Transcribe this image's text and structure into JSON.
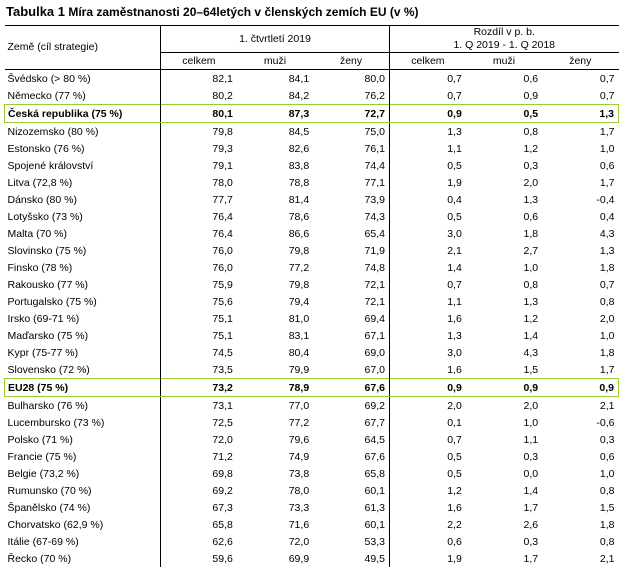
{
  "caption": {
    "lead": "Tabulka 1",
    "rest": " Míra zaměstnanosti 20–64letých v členských zemích EU (v %)"
  },
  "header": {
    "country": "Země (cíl strategie)",
    "group1": "1. čtvrtletí 2019",
    "group2_line1": "Rozdíl v p. b.",
    "group2_line2": "1. Q 2019 - 1. Q 2018",
    "sub": [
      "celkem",
      "muži",
      "ženy",
      "celkem",
      "muži",
      "ženy"
    ]
  },
  "highlight_color": "#9acd32",
  "rows": [
    {
      "name": "Švédsko (> 80 %)",
      "v": [
        "82,1",
        "84,1",
        "80,0",
        "0,7",
        "0,6",
        "0,7"
      ],
      "hl": false
    },
    {
      "name": "Německo (77 %)",
      "v": [
        "80,2",
        "84,2",
        "76,2",
        "0,7",
        "0,9",
        "0,7"
      ],
      "hl": false
    },
    {
      "name": "Česká republika (75 %)",
      "v": [
        "80,1",
        "87,3",
        "72,7",
        "0,9",
        "0,5",
        "1,3"
      ],
      "hl": true
    },
    {
      "name": "Nizozemsko (80 %)",
      "v": [
        "79,8",
        "84,5",
        "75,0",
        "1,3",
        "0,8",
        "1,7"
      ],
      "hl": false
    },
    {
      "name": "Estonsko (76 %)",
      "v": [
        "79,3",
        "82,6",
        "76,1",
        "1,1",
        "1,2",
        "1,0"
      ],
      "hl": false
    },
    {
      "name": "Spojené království",
      "v": [
        "79,1",
        "83,8",
        "74,4",
        "0,5",
        "0,3",
        "0,6"
      ],
      "hl": false
    },
    {
      "name": "Litva (72,8 %)",
      "v": [
        "78,0",
        "78,8",
        "77,1",
        "1,9",
        "2,0",
        "1,7"
      ],
      "hl": false
    },
    {
      "name": "Dánsko (80 %)",
      "v": [
        "77,7",
        "81,4",
        "73,9",
        "0,4",
        "1,3",
        "-0,4"
      ],
      "hl": false
    },
    {
      "name": "Lotyšsko (73 %)",
      "v": [
        "76,4",
        "78,6",
        "74,3",
        "0,5",
        "0,6",
        "0,4"
      ],
      "hl": false
    },
    {
      "name": "Malta (70 %)",
      "v": [
        "76,4",
        "86,6",
        "65,4",
        "3,0",
        "1,8",
        "4,3"
      ],
      "hl": false
    },
    {
      "name": "Slovinsko (75 %)",
      "v": [
        "76,0",
        "79,8",
        "71,9",
        "2,1",
        "2,7",
        "1,3"
      ],
      "hl": false
    },
    {
      "name": "Finsko (78 %)",
      "v": [
        "76,0",
        "77,2",
        "74,8",
        "1,4",
        "1,0",
        "1,8"
      ],
      "hl": false
    },
    {
      "name": "Rakousko (77 %)",
      "v": [
        "75,9",
        "79,8",
        "72,1",
        "0,7",
        "0,8",
        "0,7"
      ],
      "hl": false
    },
    {
      "name": "Portugalsko (75 %)",
      "v": [
        "75,6",
        "79,4",
        "72,1",
        "1,1",
        "1,3",
        "0,8"
      ],
      "hl": false
    },
    {
      "name": "Irsko (69-71 %)",
      "v": [
        "75,1",
        "81,0",
        "69,4",
        "1,6",
        "1,2",
        "2,0"
      ],
      "hl": false
    },
    {
      "name": "Maďarsko (75 %)",
      "v": [
        "75,1",
        "83,1",
        "67,1",
        "1,3",
        "1,4",
        "1,0"
      ],
      "hl": false
    },
    {
      "name": "Kypr (75-77 %)",
      "v": [
        "74,5",
        "80,4",
        "69,0",
        "3,0",
        "4,3",
        "1,8"
      ],
      "hl": false
    },
    {
      "name": "Slovensko (72 %)",
      "v": [
        "73,5",
        "79,9",
        "67,0",
        "1,6",
        "1,5",
        "1,7"
      ],
      "hl": false
    },
    {
      "name": "EU28 (75 %)",
      "v": [
        "73,2",
        "78,9",
        "67,6",
        "0,9",
        "0,9",
        "0,9"
      ],
      "hl": true
    },
    {
      "name": "Bulharsko (76 %)",
      "v": [
        "73,1",
        "77,0",
        "69,2",
        "2,0",
        "2,0",
        "2,1"
      ],
      "hl": false
    },
    {
      "name": "Lucembursko (73 %)",
      "v": [
        "72,5",
        "77,2",
        "67,7",
        "0,1",
        "1,0",
        "-0,6"
      ],
      "hl": false
    },
    {
      "name": "Polsko (71 %)",
      "v": [
        "72,0",
        "79,6",
        "64,5",
        "0,7",
        "1,1",
        "0,3"
      ],
      "hl": false
    },
    {
      "name": "Francie (75 %)",
      "v": [
        "71,2",
        "74,9",
        "67,6",
        "0,5",
        "0,3",
        "0,6"
      ],
      "hl": false
    },
    {
      "name": "Belgie (73,2 %)",
      "v": [
        "69,8",
        "73,8",
        "65,8",
        "0,5",
        "0,0",
        "1,0"
      ],
      "hl": false
    },
    {
      "name": "Rumunsko (70 %)",
      "v": [
        "69,2",
        "78,0",
        "60,1",
        "1,2",
        "1,4",
        "0,8"
      ],
      "hl": false
    },
    {
      "name": "Španělsko (74 %)",
      "v": [
        "67,3",
        "73,3",
        "61,3",
        "1,6",
        "1,7",
        "1,5"
      ],
      "hl": false
    },
    {
      "name": "Chorvatsko (62,9 %)",
      "v": [
        "65,8",
        "71,6",
        "60,1",
        "2,2",
        "2,6",
        "1,8"
      ],
      "hl": false
    },
    {
      "name": "Itálie (67-69 %)",
      "v": [
        "62,6",
        "72,0",
        "53,3",
        "0,6",
        "0,3",
        "0,8"
      ],
      "hl": false
    },
    {
      "name": "Řecko (70 %)",
      "v": [
        "59,6",
        "69,9",
        "49,5",
        "1,9",
        "1,7",
        "2,1"
      ],
      "hl": false
    }
  ]
}
